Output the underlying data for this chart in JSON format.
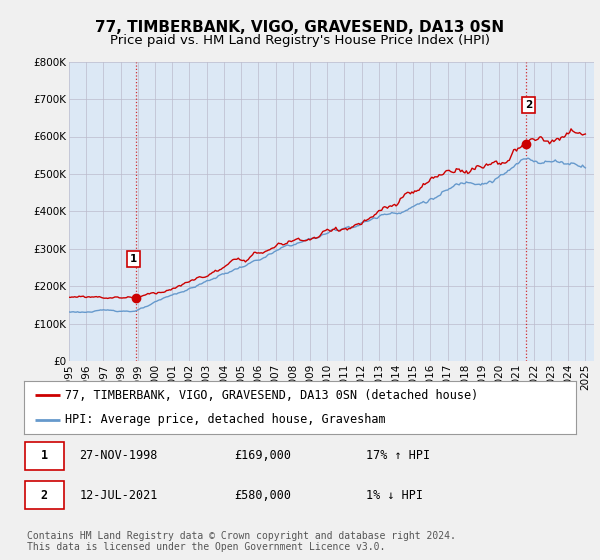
{
  "title": "77, TIMBERBANK, VIGO, GRAVESEND, DA13 0SN",
  "subtitle": "Price paid vs. HM Land Registry's House Price Index (HPI)",
  "ylim": [
    0,
    800000
  ],
  "yticks": [
    0,
    100000,
    200000,
    300000,
    400000,
    500000,
    600000,
    700000,
    800000
  ],
  "ytick_labels": [
    "£0",
    "£100K",
    "£200K",
    "£300K",
    "£400K",
    "£500K",
    "£600K",
    "£700K",
    "£800K"
  ],
  "xlim_start": 1995.0,
  "xlim_end": 2025.5,
  "xticks": [
    1995,
    1996,
    1997,
    1998,
    1999,
    2000,
    2001,
    2002,
    2003,
    2004,
    2005,
    2006,
    2007,
    2008,
    2009,
    2010,
    2011,
    2012,
    2013,
    2014,
    2015,
    2016,
    2017,
    2018,
    2019,
    2020,
    2021,
    2022,
    2023,
    2024,
    2025
  ],
  "bg_color": "#f0f0f0",
  "plot_bg_color": "#dce8f5",
  "red_color": "#cc0000",
  "blue_color": "#6699cc",
  "marker1_x": 1998.9,
  "marker1_y": 169000,
  "marker2_x": 2021.54,
  "marker2_y": 580000,
  "legend_label_red": "77, TIMBERBANK, VIGO, GRAVESEND, DA13 0SN (detached house)",
  "legend_label_blue": "HPI: Average price, detached house, Gravesham",
  "table_row1": [
    "1",
    "27-NOV-1998",
    "£169,000",
    "17% ↑ HPI"
  ],
  "table_row2": [
    "2",
    "12-JUL-2021",
    "£580,000",
    "1% ↓ HPI"
  ],
  "footer": "Contains HM Land Registry data © Crown copyright and database right 2024.\nThis data is licensed under the Open Government Licence v3.0.",
  "title_fontsize": 11,
  "subtitle_fontsize": 9.5,
  "tick_fontsize": 7.5,
  "legend_fontsize": 8.5,
  "table_fontsize": 8.5,
  "footer_fontsize": 7
}
